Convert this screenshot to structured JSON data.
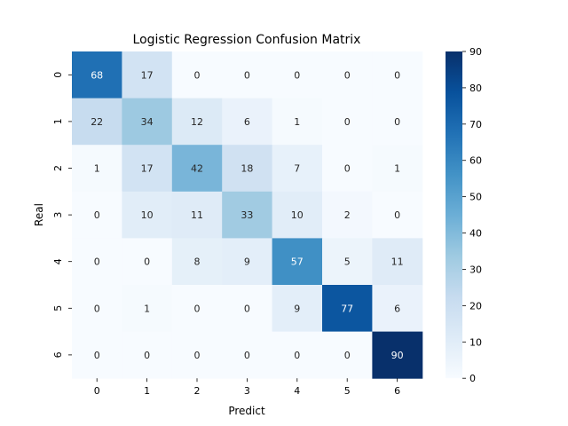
{
  "chart_data": {
    "type": "heatmap",
    "title": "Logistic Regression Confusion Matrix",
    "xlabel": "Predict",
    "ylabel": "Real",
    "x_categories": [
      "0",
      "1",
      "2",
      "3",
      "4",
      "5",
      "6"
    ],
    "y_categories": [
      "0",
      "1",
      "2",
      "3",
      "4",
      "5",
      "6"
    ],
    "values": [
      [
        68,
        17,
        0,
        0,
        0,
        0,
        0
      ],
      [
        22,
        34,
        12,
        6,
        1,
        0,
        0
      ],
      [
        1,
        17,
        42,
        18,
        7,
        0,
        1
      ],
      [
        0,
        10,
        11,
        33,
        10,
        2,
        0
      ],
      [
        0,
        0,
        8,
        9,
        57,
        5,
        11
      ],
      [
        0,
        1,
        0,
        0,
        9,
        77,
        6
      ],
      [
        0,
        0,
        0,
        0,
        0,
        0,
        90
      ]
    ],
    "colorbar": {
      "min": 0,
      "max": 90,
      "ticks": [
        0,
        10,
        20,
        30,
        40,
        50,
        60,
        70,
        80,
        90
      ],
      "colormap": "Blues"
    }
  }
}
